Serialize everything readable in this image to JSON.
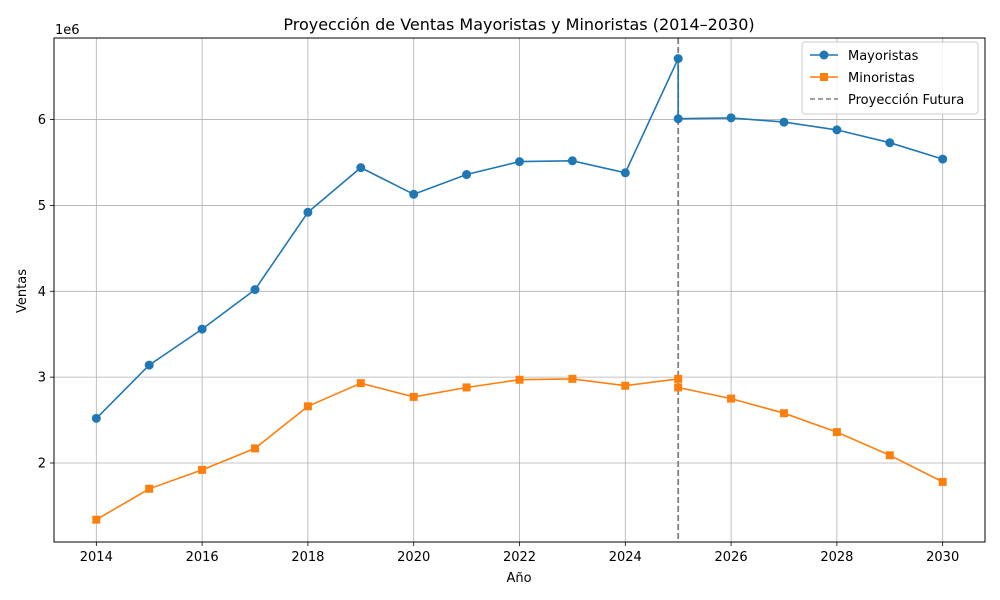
{
  "chart_data": {
    "type": "line",
    "title": "Proyección de Ventas Mayoristas y Minoristas (2014–2030)",
    "xlabel": "Año",
    "ylabel": "Ventas",
    "y_scale_label": "1e6",
    "xlim": [
      2013.2,
      2030.8
    ],
    "ylim": [
      1080000,
      6950000
    ],
    "x_ticks": [
      2014,
      2016,
      2018,
      2020,
      2022,
      2024,
      2026,
      2028,
      2030
    ],
    "y_ticks": [
      2000000,
      3000000,
      4000000,
      5000000,
      6000000
    ],
    "y_tick_labels": [
      "2",
      "3",
      "4",
      "5",
      "6"
    ],
    "grid": true,
    "legend_position": "upper right",
    "series": [
      {
        "name": "Mayoristas",
        "color": "#1f77b4",
        "marker": "circle",
        "x": [
          2014,
          2015,
          2016,
          2017,
          2018,
          2019,
          2020,
          2021,
          2022,
          2023,
          2024,
          2025,
          2025,
          2026,
          2027,
          2028,
          2029,
          2030
        ],
        "values": [
          2520000,
          3140000,
          3560000,
          4020000,
          4920000,
          5440000,
          5130000,
          5360000,
          5510000,
          5520000,
          5380000,
          6710000,
          6010000,
          6020000,
          5970000,
          5880000,
          5730000,
          5540000
        ]
      },
      {
        "name": "Minoristas",
        "color": "#ff7f0e",
        "marker": "square",
        "x": [
          2014,
          2015,
          2016,
          2017,
          2018,
          2019,
          2020,
          2021,
          2022,
          2023,
          2024,
          2025,
          2025,
          2026,
          2027,
          2028,
          2029,
          2030
        ],
        "values": [
          1340000,
          1700000,
          1920000,
          2170000,
          2660000,
          2930000,
          2770000,
          2880000,
          2970000,
          2980000,
          2900000,
          2980000,
          2880000,
          2750000,
          2580000,
          2360000,
          2090000,
          1780000
        ]
      }
    ],
    "vertical_line": {
      "name": "Proyección Futura",
      "x": 2025,
      "color": "#808080",
      "style": "dashed"
    }
  }
}
